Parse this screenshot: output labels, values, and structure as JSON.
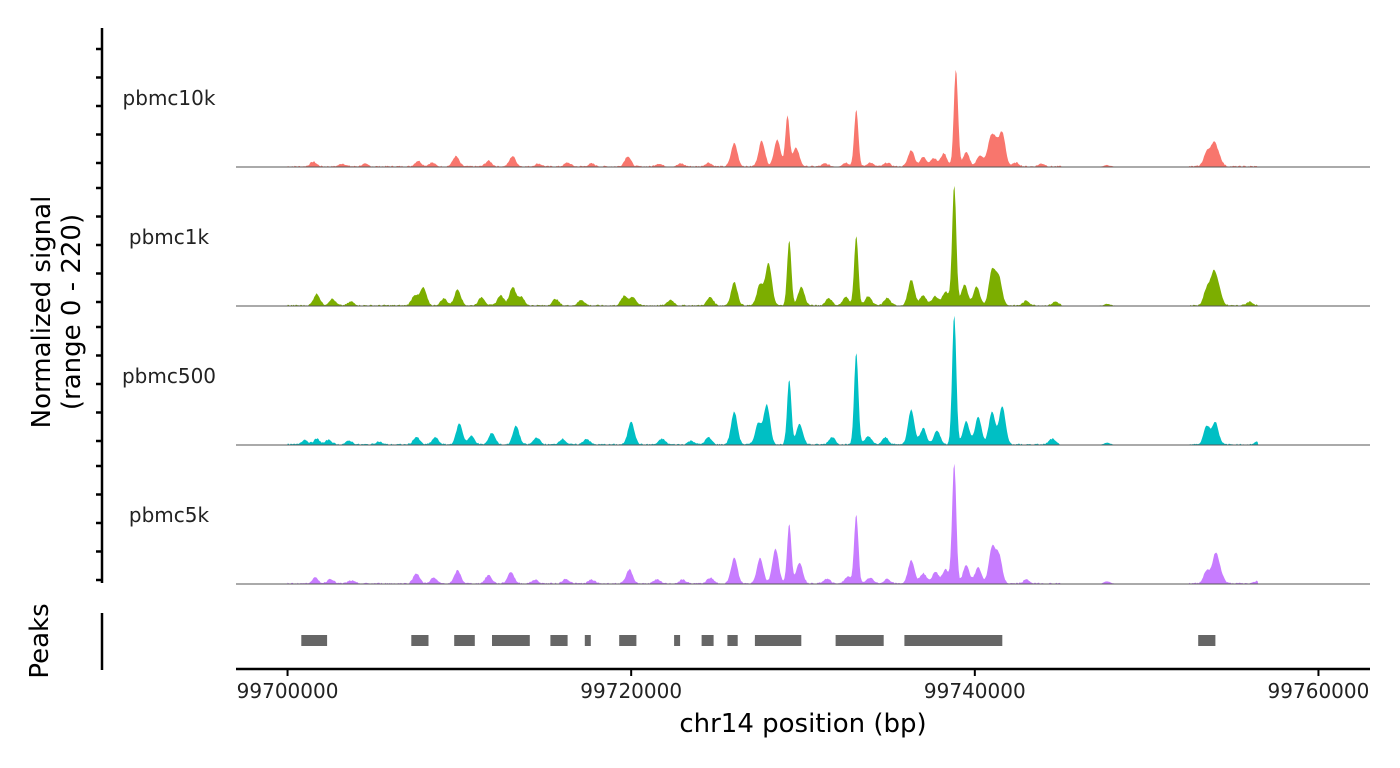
{
  "chart_data": {
    "type": "area",
    "ylabel_line1": "Normalized signal",
    "ylabel_line2": "(range 0 - 220)",
    "ylim": [
      0,
      220
    ],
    "xlabel": "chr14 position (bp)",
    "xlim": [
      99697000,
      99763000
    ],
    "x_ticks": [
      99700000,
      99720000,
      99740000,
      99760000
    ],
    "x_tick_labels": [
      "99700000",
      "99720000",
      "99740000",
      "99760000"
    ],
    "peaks_label": "Peaks",
    "colors": {
      "pbmc10k": "#F8766D",
      "pbmc1k": "#7CAE00",
      "pbmc500": "#00BFC4",
      "pbmc5k": "#C77CFF",
      "peaks": "#666666",
      "axis": "#000000",
      "baseline": "#555555"
    },
    "series": [
      {
        "name": "pbmc10k",
        "peaks": [
          [
            99701500,
            10
          ],
          [
            99703200,
            6
          ],
          [
            99704500,
            5
          ],
          [
            99707600,
            12
          ],
          [
            99708400,
            8
          ],
          [
            99709800,
            22
          ],
          [
            99711700,
            12
          ],
          [
            99713100,
            22
          ],
          [
            99714600,
            6
          ],
          [
            99716300,
            8
          ],
          [
            99717700,
            6
          ],
          [
            99719800,
            22
          ],
          [
            99721600,
            6
          ],
          [
            99722900,
            6
          ],
          [
            99724500,
            8
          ],
          [
            99726000,
            50
          ],
          [
            99727600,
            55
          ],
          [
            99728500,
            58
          ],
          [
            99729100,
            110
          ],
          [
            99729600,
            40
          ],
          [
            99731300,
            6
          ],
          [
            99732500,
            8
          ],
          [
            99733100,
            122
          ],
          [
            99733900,
            8
          ],
          [
            99734900,
            8
          ],
          [
            99736300,
            35
          ],
          [
            99737000,
            20
          ],
          [
            99737600,
            18
          ],
          [
            99738200,
            28
          ],
          [
            99738900,
            210
          ],
          [
            99739500,
            30
          ],
          [
            99740300,
            24
          ],
          [
            99740900,
            52
          ],
          [
            99741200,
            45
          ],
          [
            99741600,
            70
          ],
          [
            99742400,
            8
          ],
          [
            99743900,
            6
          ],
          [
            99747700,
            10
          ],
          [
            99753500,
            30
          ],
          [
            99753900,
            45
          ],
          [
            99754200,
            20
          ]
        ]
      },
      {
        "name": "pbmc1k",
        "peaks": [
          [
            99701700,
            25
          ],
          [
            99702600,
            14
          ],
          [
            99703700,
            8
          ],
          [
            99707400,
            22
          ],
          [
            99707900,
            38
          ],
          [
            99709100,
            15
          ],
          [
            99709900,
            35
          ],
          [
            99711300,
            18
          ],
          [
            99712400,
            22
          ],
          [
            99713100,
            40
          ],
          [
            99713600,
            18
          ],
          [
            99715600,
            14
          ],
          [
            99717100,
            12
          ],
          [
            99719600,
            20
          ],
          [
            99720100,
            18
          ],
          [
            99722300,
            12
          ],
          [
            99724600,
            18
          ],
          [
            99726000,
            50
          ],
          [
            99727500,
            45
          ],
          [
            99728000,
            90
          ],
          [
            99729200,
            140
          ],
          [
            99729900,
            40
          ],
          [
            99731500,
            16
          ],
          [
            99732500,
            18
          ],
          [
            99733100,
            150
          ],
          [
            99733800,
            20
          ],
          [
            99734900,
            16
          ],
          [
            99736300,
            55
          ],
          [
            99737000,
            22
          ],
          [
            99737700,
            20
          ],
          [
            99738300,
            30
          ],
          [
            99738800,
            260
          ],
          [
            99739400,
            45
          ],
          [
            99740100,
            40
          ],
          [
            99741000,
            75
          ],
          [
            99741400,
            60
          ],
          [
            99743000,
            10
          ],
          [
            99744700,
            8
          ],
          [
            99747700,
            12
          ],
          [
            99753500,
            35
          ],
          [
            99753900,
            65
          ],
          [
            99754200,
            30
          ],
          [
            99756000,
            8
          ],
          [
            99758000,
            6
          ]
        ]
      },
      {
        "name": "pbmc500",
        "peaks": [
          [
            99701000,
            10
          ],
          [
            99701700,
            12
          ],
          [
            99702400,
            10
          ],
          [
            99703600,
            8
          ],
          [
            99705300,
            6
          ],
          [
            99707500,
            16
          ],
          [
            99708600,
            15
          ],
          [
            99710000,
            45
          ],
          [
            99710700,
            18
          ],
          [
            99711900,
            25
          ],
          [
            99713300,
            40
          ],
          [
            99714500,
            15
          ],
          [
            99716000,
            12
          ],
          [
            99717400,
            12
          ],
          [
            99720000,
            50
          ],
          [
            99721800,
            12
          ],
          [
            99723500,
            8
          ],
          [
            99724500,
            15
          ],
          [
            99726000,
            70
          ],
          [
            99727400,
            45
          ],
          [
            99727900,
            85
          ],
          [
            99729200,
            140
          ],
          [
            99729800,
            45
          ],
          [
            99731700,
            16
          ],
          [
            99733100,
            200
          ],
          [
            99733800,
            18
          ],
          [
            99734800,
            15
          ],
          [
            99736300,
            75
          ],
          [
            99737000,
            35
          ],
          [
            99737800,
            30
          ],
          [
            99738800,
            280
          ],
          [
            99739500,
            50
          ],
          [
            99740200,
            60
          ],
          [
            99741000,
            70
          ],
          [
            99741600,
            82
          ],
          [
            99744500,
            12
          ],
          [
            99747700,
            12
          ],
          [
            99753500,
            40
          ],
          [
            99754000,
            48
          ],
          [
            99756500,
            6
          ],
          [
            99759000,
            5
          ]
        ]
      },
      {
        "name": "pbmc5k",
        "peaks": [
          [
            99701600,
            12
          ],
          [
            99702500,
            10
          ],
          [
            99703700,
            6
          ],
          [
            99707500,
            22
          ],
          [
            99708500,
            12
          ],
          [
            99709900,
            28
          ],
          [
            99711700,
            18
          ],
          [
            99713000,
            25
          ],
          [
            99714400,
            8
          ],
          [
            99716200,
            10
          ],
          [
            99717700,
            8
          ],
          [
            99719900,
            30
          ],
          [
            99721500,
            8
          ],
          [
            99723000,
            8
          ],
          [
            99724600,
            12
          ],
          [
            99726000,
            55
          ],
          [
            99727500,
            55
          ],
          [
            99728400,
            75
          ],
          [
            99729200,
            130
          ],
          [
            99729800,
            45
          ],
          [
            99731400,
            10
          ],
          [
            99732600,
            14
          ],
          [
            99733100,
            150
          ],
          [
            99733900,
            12
          ],
          [
            99734900,
            10
          ],
          [
            99736300,
            50
          ],
          [
            99737000,
            22
          ],
          [
            99737700,
            25
          ],
          [
            99738300,
            30
          ],
          [
            99738800,
            260
          ],
          [
            99739500,
            40
          ],
          [
            99740200,
            35
          ],
          [
            99741000,
            75
          ],
          [
            99741400,
            60
          ],
          [
            99743000,
            8
          ],
          [
            99747700,
            15
          ],
          [
            99753500,
            28
          ],
          [
            99754000,
            60
          ],
          [
            99754300,
            20
          ],
          [
            99756500,
            6
          ],
          [
            99759000,
            5
          ]
        ]
      }
    ],
    "peak_regions": [
      [
        99700800,
        99702300
      ],
      [
        99707200,
        99708200
      ],
      [
        99709700,
        99710900
      ],
      [
        99711900,
        99714100
      ],
      [
        99715300,
        99716300
      ],
      [
        99717300,
        99717600
      ],
      [
        99719300,
        99720300
      ],
      [
        99722500,
        99722800
      ],
      [
        99724100,
        99724800
      ],
      [
        99725600,
        99726200
      ],
      [
        99727200,
        99729900
      ],
      [
        99731900,
        99734700
      ],
      [
        99735900,
        99741600
      ],
      [
        99753000,
        99754000
      ]
    ]
  }
}
